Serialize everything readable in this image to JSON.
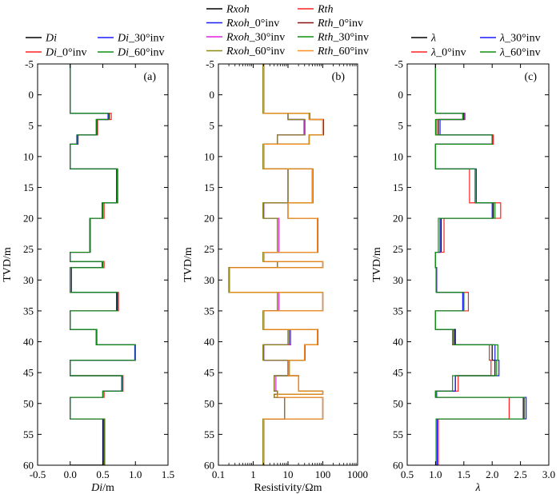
{
  "chart_data": [
    {
      "type": "line",
      "panel_label": "(a)",
      "xlabel_italic": "Di",
      "xlabel_unit": "/m",
      "ylabel": "TVD/m",
      "xlim": [
        -0.5,
        1.5
      ],
      "ylim": [
        60,
        -5
      ],
      "x_ticks": [
        -0.5,
        0.0,
        0.5,
        1.0,
        1.5
      ],
      "x_tick_labels": [
        "-0.5",
        "0.0",
        "0.5",
        "1.0",
        "1.5"
      ],
      "y_ticks": [
        -5,
        0,
        5,
        10,
        15,
        20,
        25,
        30,
        35,
        40,
        45,
        50,
        55,
        60
      ],
      "y_tick_labels": [
        "-5",
        "0",
        "5",
        "10",
        "15",
        "20",
        "25",
        "30",
        "35",
        "40",
        "45",
        "50",
        "55",
        "60"
      ],
      "legend": [
        {
          "italic": "Di",
          "suffix": "",
          "color": "#000000"
        },
        {
          "italic": "Di",
          "suffix": "_30°inv",
          "color": "#1a1aff"
        },
        {
          "italic": "Di",
          "suffix": "_0°inv",
          "color": "#ff2020"
        },
        {
          "italic": "Di",
          "suffix": "_60°inv",
          "color": "#109010"
        }
      ],
      "series": [
        {
          "name": "Di",
          "color": "#000000",
          "depths": [
            -5,
            3,
            4,
            6.5,
            8,
            12,
            17.5,
            20,
            25.5,
            27,
            28,
            32,
            35,
            38,
            40.5,
            43,
            45.5,
            48,
            49,
            52.5,
            60
          ],
          "values": [
            0,
            0.6,
            0.4,
            0.12,
            0,
            0.72,
            0.5,
            0.3,
            0,
            0.5,
            0,
            0.72,
            0,
            0.4,
            1.0,
            0,
            0.8,
            0.5,
            0,
            0.5,
            0
          ]
        },
        {
          "name": "Di_0°inv",
          "color": "#ff2020",
          "depths": [
            -5,
            3,
            4,
            6.5,
            8,
            12,
            17.5,
            20,
            25.5,
            27,
            28,
            32,
            35,
            38,
            40.5,
            43,
            45.5,
            48,
            49,
            52.5,
            60
          ],
          "values": [
            0,
            0.63,
            0.42,
            0.12,
            0,
            0.73,
            0.52,
            0.31,
            0,
            0.52,
            0,
            0.74,
            0,
            0.41,
            1.0,
            0,
            0.81,
            0.52,
            0,
            0.53,
            0
          ]
        },
        {
          "name": "Di_30°inv",
          "color": "#1a1aff",
          "depths": [
            -5,
            3,
            4,
            6.5,
            8,
            12,
            17.5,
            20,
            25.5,
            27,
            28,
            32,
            35,
            38,
            40.5,
            43,
            45.5,
            48,
            49,
            52.5,
            60
          ],
          "values": [
            0,
            0.58,
            0.41,
            0.11,
            0,
            0.71,
            0.49,
            0.3,
            0,
            0.49,
            0.02,
            0.71,
            0,
            0.4,
            0.99,
            0,
            0.79,
            0.5,
            0,
            0.51,
            0
          ]
        },
        {
          "name": "Di_60°inv",
          "color": "#109010",
          "depths": [
            -5,
            3,
            4,
            6.5,
            8,
            12,
            17.5,
            20,
            25.5,
            27,
            28,
            32,
            35,
            38,
            40.5,
            43,
            45.5,
            48,
            49,
            52.5,
            60
          ],
          "values": [
            0,
            0.59,
            0.4,
            0.1,
            0,
            0.72,
            0.5,
            0.3,
            0,
            0.5,
            0,
            0.73,
            0,
            0.4,
            1.0,
            0,
            0.8,
            0.5,
            0,
            0.52,
            0
          ]
        }
      ]
    },
    {
      "type": "line",
      "panel_label": "(b)",
      "xlabel": "Resistivity/Ωm",
      "ylabel": "TVD/m",
      "xscale": "log",
      "xlim": [
        0.1,
        1000
      ],
      "ylim": [
        60,
        -5
      ],
      "x_ticks": [
        0.1,
        1,
        10,
        100,
        1000
      ],
      "x_tick_labels": [
        "0.1",
        "1",
        "10",
        "100",
        "1000"
      ],
      "y_ticks": [
        -5,
        0,
        5,
        10,
        15,
        20,
        25,
        30,
        35,
        40,
        45,
        50,
        55,
        60
      ],
      "y_tick_labels": [
        "-5",
        "0",
        "5",
        "10",
        "15",
        "20",
        "25",
        "30",
        "35",
        "40",
        "45",
        "50",
        "55",
        "60"
      ],
      "legend": [
        {
          "italic": "Rxoh",
          "suffix": "",
          "color": "#000000"
        },
        {
          "italic": "Rth",
          "suffix": "",
          "color": "#ff2020"
        },
        {
          "italic": "Rxoh",
          "suffix": "_0°inv",
          "color": "#1a1aff"
        },
        {
          "italic": "Rth",
          "suffix": "_0°inv",
          "color": "#8b1010"
        },
        {
          "italic": "Rxoh",
          "suffix": "_30°inv",
          "color": "#e020e0"
        },
        {
          "italic": "Rth",
          "suffix": "_30°inv",
          "color": "#109010"
        },
        {
          "italic": "Rxoh",
          "suffix": "_60°inv",
          "color": "#8b8b10"
        },
        {
          "italic": "Rth",
          "suffix": "_60°inv",
          "color": "#ff9020"
        }
      ],
      "series": [
        {
          "name": "Rxoh",
          "color": "#000000",
          "depths": [
            -5,
            3,
            4,
            6.5,
            8,
            12,
            17.5,
            20,
            25.5,
            27,
            28,
            32,
            35,
            38,
            40.5,
            43,
            45.5,
            48,
            48.5,
            49,
            52.5,
            60
          ],
          "values": [
            2,
            10,
            30,
            5,
            2,
            10,
            2,
            5,
            2,
            5,
            0.2,
            5,
            2,
            10,
            2,
            10,
            4,
            5,
            4,
            8,
            2,
            2
          ]
        },
        {
          "name": "Rxoh_0°inv",
          "color": "#1a1aff",
          "depths": [
            -5,
            3,
            4,
            6.5,
            8,
            12,
            17.5,
            20,
            25.5,
            27,
            28,
            32,
            35,
            38,
            40.5,
            43,
            45.5,
            48,
            48.5,
            49,
            52.5,
            60
          ],
          "values": [
            2,
            10,
            29,
            5,
            2,
            10,
            2,
            5,
            2,
            5,
            0.2,
            5,
            2,
            11,
            2,
            10,
            4,
            5,
            4,
            8,
            2,
            2
          ]
        },
        {
          "name": "Rxoh_30°inv",
          "color": "#e020e0",
          "depths": [
            -5,
            3,
            4,
            6.5,
            8,
            12,
            17.5,
            20,
            25.5,
            27,
            28,
            32,
            35,
            38,
            40.5,
            43,
            45.5,
            48,
            48.5,
            49,
            52.5,
            60
          ],
          "values": [
            2,
            10,
            30,
            5,
            2,
            10,
            2,
            5.5,
            2,
            5,
            0.2,
            5.5,
            2,
            12,
            2,
            10,
            4.5,
            5,
            4,
            8,
            2,
            2
          ]
        },
        {
          "name": "Rxoh_60°inv",
          "color": "#8b8b10",
          "depths": [
            -5,
            3,
            4,
            6.5,
            8,
            12,
            17.5,
            20,
            25.5,
            27,
            28,
            32,
            35,
            38,
            40.5,
            43,
            45.5,
            48,
            48.5,
            49,
            52.5,
            60
          ],
          "values": [
            1.9,
            10,
            31,
            5,
            1.9,
            10,
            1.9,
            5,
            1.9,
            5,
            0.21,
            5,
            1.9,
            10,
            1.9,
            11,
            4,
            5,
            4,
            8,
            1.9,
            1.9
          ]
        },
        {
          "name": "Rth",
          "color": "#ff2020",
          "depths": [
            -5,
            3,
            4,
            6.5,
            8,
            12,
            17.5,
            20,
            25.5,
            27,
            28,
            32,
            35,
            38,
            40.5,
            43,
            45.5,
            48,
            48.5,
            49,
            52.5,
            60
          ],
          "values": [
            2,
            40,
            100,
            40,
            2,
            50,
            10,
            70,
            2,
            100,
            0.2,
            100,
            2,
            70,
            30,
            10,
            20,
            100,
            5,
            100,
            2,
            2
          ]
        },
        {
          "name": "Rth_0°inv",
          "color": "#8b1010",
          "depths": [
            -5,
            3,
            4,
            6.5,
            8,
            12,
            17.5,
            20,
            25.5,
            27,
            28,
            32,
            35,
            38,
            40.5,
            43,
            45.5,
            48,
            48.5,
            49,
            52.5,
            60
          ],
          "values": [
            2,
            42,
            105,
            40,
            2,
            50,
            10,
            72,
            2,
            100,
            0.2,
            100,
            2,
            72,
            30,
            10,
            20,
            100,
            5,
            100,
            2,
            2
          ]
        },
        {
          "name": "Rth_30°inv",
          "color": "#109010",
          "depths": [
            -5,
            3,
            4,
            6.5,
            8,
            12,
            17.5,
            20,
            25.5,
            27,
            28,
            32,
            35,
            38,
            40.5,
            43,
            45.5,
            48,
            48.5,
            49,
            52.5,
            60
          ],
          "values": [
            2,
            41,
            100,
            41,
            2,
            52,
            10,
            72,
            2,
            100,
            0.2,
            100,
            2,
            72,
            31,
            10,
            20,
            100,
            5,
            100,
            2,
            2
          ]
        },
        {
          "name": "Rth_60°inv",
          "color": "#ff9020",
          "depths": [
            -5,
            3,
            4,
            6.5,
            8,
            12,
            17.5,
            20,
            25.5,
            27,
            28,
            32,
            35,
            38,
            40.5,
            43,
            45.5,
            48,
            48.5,
            49,
            52.5,
            60
          ],
          "values": [
            2,
            40,
            100,
            40,
            2,
            50,
            10,
            70,
            2,
            100,
            0.21,
            100,
            2,
            70,
            30,
            10,
            20,
            100,
            5,
            100,
            2,
            2
          ]
        }
      ]
    },
    {
      "type": "line",
      "panel_label": "(c)",
      "xlabel_italic": "λ",
      "xlabel_unit": "",
      "ylabel": "TVD/m",
      "xlim": [
        0.5,
        3.0
      ],
      "ylim": [
        60,
        -5
      ],
      "x_ticks": [
        0.5,
        1.0,
        1.5,
        2.0,
        2.5,
        3.0
      ],
      "x_tick_labels": [
        "0.5",
        "1.0",
        "1.5",
        "2.0",
        "2.5",
        "3.0"
      ],
      "y_ticks": [
        -5,
        0,
        5,
        10,
        15,
        20,
        25,
        30,
        35,
        40,
        45,
        50,
        55,
        60
      ],
      "y_tick_labels": [
        "-5",
        "0",
        "5",
        "10",
        "15",
        "20",
        "25",
        "30",
        "35",
        "40",
        "45",
        "50",
        "55",
        "60"
      ],
      "legend": [
        {
          "italic": "λ",
          "suffix": "",
          "color": "#000000"
        },
        {
          "italic": "λ",
          "suffix": "_30°inv",
          "color": "#1a1aff"
        },
        {
          "italic": "λ",
          "suffix": "_0°inv",
          "color": "#ff2020"
        },
        {
          "italic": "λ",
          "suffix": "_60°inv",
          "color": "#109010"
        }
      ],
      "series": [
        {
          "name": "λ",
          "color": "#000000",
          "depths": [
            -5,
            3,
            4,
            6.5,
            8,
            12,
            17.5,
            20,
            25.5,
            28,
            32,
            35,
            38,
            40.5,
            43,
            45.5,
            48,
            49,
            52.5,
            60
          ],
          "values": [
            1.0,
            1.5,
            1.05,
            2.0,
            1.0,
            1.7,
            2.02,
            1.1,
            1.0,
            1.02,
            1.5,
            1.0,
            1.35,
            2.0,
            2.05,
            1.35,
            1.0,
            2.55,
            1.03,
            1.0
          ]
        },
        {
          "name": "λ_0°inv",
          "color": "#ff2020",
          "depths": [
            -5,
            3,
            4,
            6.5,
            8,
            12,
            17.5,
            20,
            25.5,
            28,
            32,
            35,
            38,
            40.5,
            43,
            45.5,
            48,
            49,
            52.5,
            60
          ],
          "values": [
            1.0,
            1.52,
            1.02,
            2.02,
            1.0,
            1.6,
            2.15,
            1.15,
            1.0,
            1.02,
            1.58,
            1.0,
            1.3,
            1.95,
            1.98,
            1.4,
            1.0,
            2.3,
            1.05,
            1.0
          ]
        },
        {
          "name": "λ_30°inv",
          "color": "#1a1aff",
          "depths": [
            -5,
            3,
            4,
            6.5,
            8,
            12,
            17.5,
            20,
            25.5,
            28,
            32,
            35,
            38,
            40.5,
            43,
            45.5,
            48,
            49,
            52.5,
            60
          ],
          "values": [
            1.0,
            1.5,
            1.08,
            2.0,
            1.0,
            1.72,
            2.0,
            1.08,
            1.0,
            1.02,
            1.48,
            1.0,
            1.33,
            2.05,
            2.12,
            1.35,
            1.02,
            2.6,
            1.03,
            1.0
          ]
        },
        {
          "name": "λ_60°inv",
          "color": "#109010",
          "depths": [
            -5,
            3,
            4,
            6.5,
            8,
            12,
            17.5,
            20,
            25.5,
            28,
            32,
            35,
            38,
            40.5,
            43,
            45.5,
            48,
            49,
            52.5,
            60
          ],
          "values": [
            1.0,
            1.48,
            1.0,
            2.0,
            1.0,
            1.7,
            2.05,
            1.05,
            1.0,
            1.01,
            1.5,
            1.0,
            1.32,
            2.1,
            2.08,
            1.3,
            1.0,
            2.57,
            1.01,
            1.0
          ]
        }
      ]
    }
  ]
}
